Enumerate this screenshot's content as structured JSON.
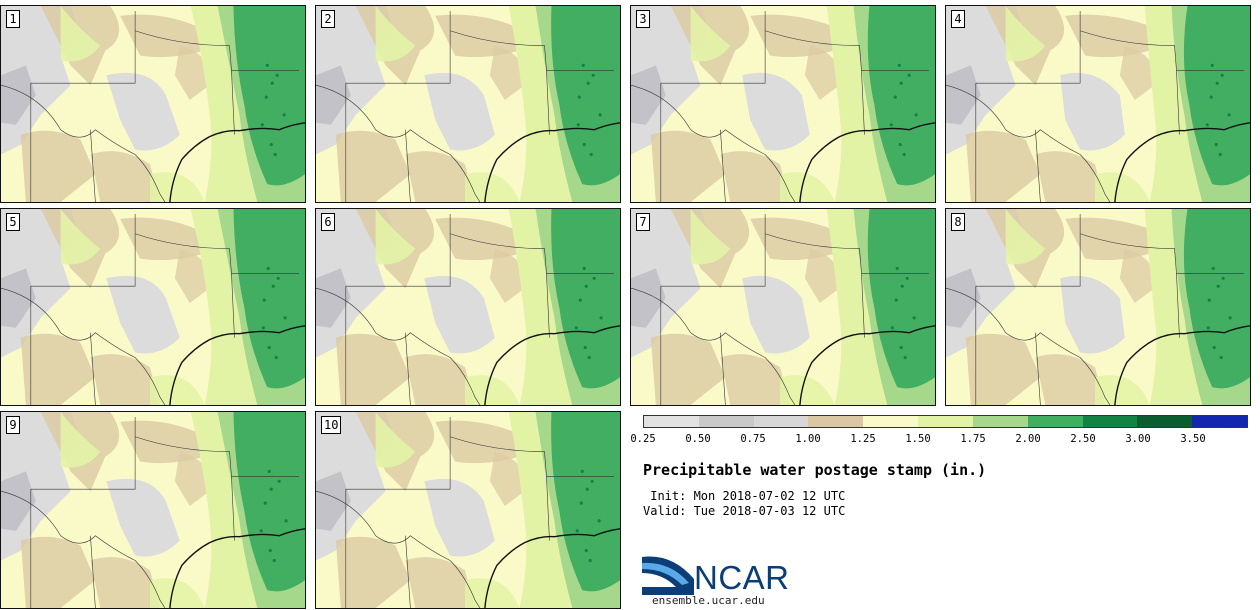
{
  "title": "Precipitable water postage stamp (in.)",
  "init_line": " Init: Mon 2018-07-02 12 UTC",
  "valid_line": "Valid: Tue 2018-07-03 12 UTC",
  "site": "ensemble.ucar.edu",
  "logo_text": "NCAR",
  "members": [
    "1",
    "2",
    "3",
    "4",
    "5",
    "6",
    "7",
    "8",
    "9",
    "10"
  ],
  "colorbar": {
    "labels": [
      "0.25",
      "0.50",
      "0.75",
      "1.00",
      "1.25",
      "1.50",
      "1.75",
      "2.00",
      "2.50",
      "3.00",
      "3.50"
    ],
    "colors": [
      "#e2e2e2",
      "#c9c9c9",
      "#d7d7d7",
      "#d9c8a3",
      "#fafac8",
      "#e3f3a6",
      "#a6d88c",
      "#42ae62",
      "#138244",
      "#0b5c2f",
      "#1227b0"
    ]
  },
  "map_colors": {
    "gray": "#dcdcdc",
    "darkgray": "#c2c2c8",
    "tan": "#dccba4",
    "pale": "#fafac8",
    "lightgreen": "#e3f3a6",
    "green": "#a6d88c",
    "medgreen": "#42ae62",
    "darkgreen": "#138244"
  }
}
